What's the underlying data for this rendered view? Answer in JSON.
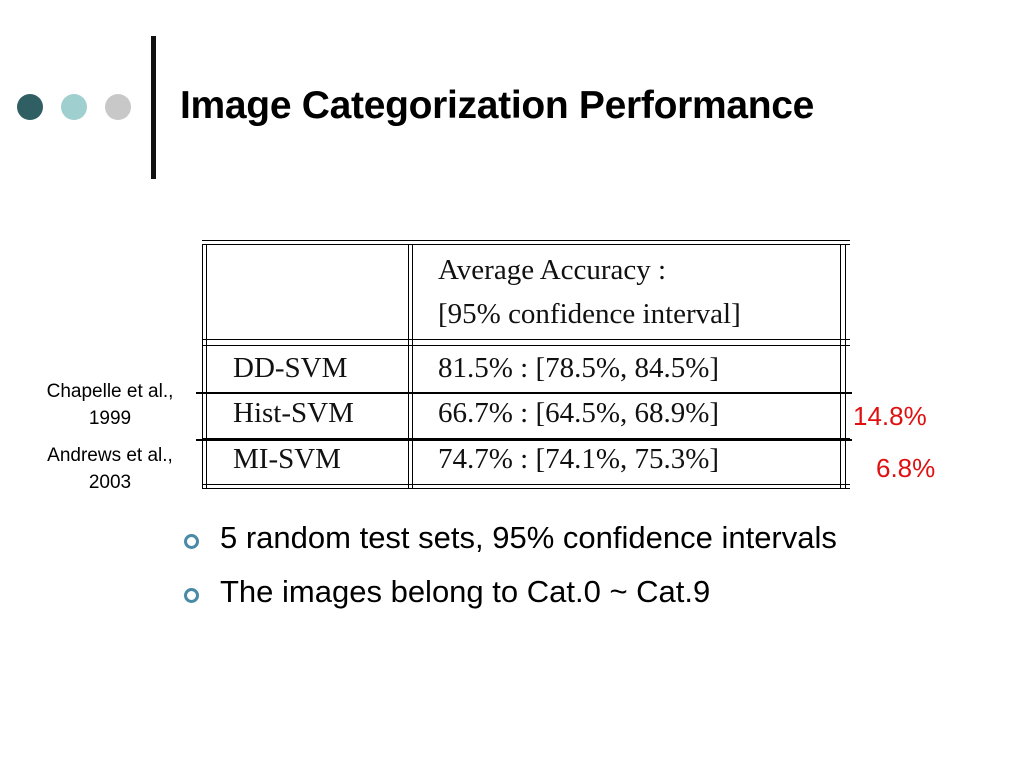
{
  "slide": {
    "title": "Image Categorization Performance"
  },
  "table": {
    "header_line1": "Average Accuracy :",
    "header_line2": "[95% confidence interval]",
    "rows": [
      {
        "method": "DD-SVM",
        "accuracy": "81.5% : [78.5%, 84.5%]"
      },
      {
        "method": "Hist-SVM",
        "accuracy": "66.7% : [64.5%, 68.9%]"
      },
      {
        "method": "MI-SVM",
        "accuracy": "74.7% : [74.1%, 75.3%]"
      }
    ]
  },
  "citations": {
    "chapelle_line1": "Chapelle et al.,",
    "chapelle_line2": "1999",
    "andrews_line1": "Andrews et al.,",
    "andrews_line2": "2003"
  },
  "differences": {
    "hist": "14.8%",
    "mi": "6.8%",
    "color": "#e01010"
  },
  "bullets": [
    "5 random test sets, 95% confidence intervals",
    "The images belong to Cat.0 ~ Cat.9"
  ],
  "colors": {
    "dot_dark": "#2f5f63",
    "dot_light": "#9fcfcf",
    "dot_gray": "#c8c8c8",
    "bullet_ring": "#4a8aa8"
  }
}
